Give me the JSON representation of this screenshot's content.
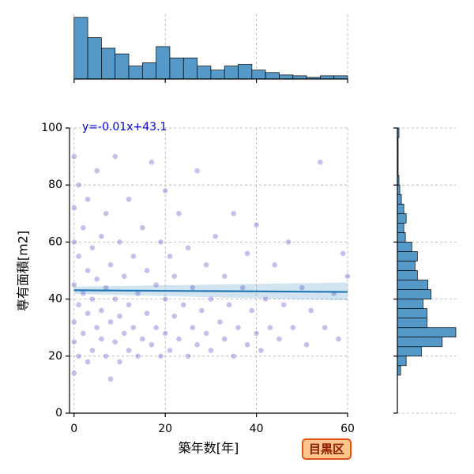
{
  "chart_data": [
    {
      "type": "scatter",
      "x_label": "築年数[年]",
      "y_label": "専有面積[m2]",
      "xlim": [
        -1,
        60
      ],
      "ylim": [
        0,
        100
      ],
      "xticks": [
        0,
        20,
        40,
        60
      ],
      "yticks": [
        0,
        20,
        40,
        60,
        80,
        100
      ],
      "grid": true,
      "color": "#3a2fc0",
      "x": [
        0,
        0,
        0,
        0,
        0,
        0,
        0,
        1,
        1,
        1,
        1,
        2,
        2,
        2,
        3,
        3,
        3,
        3,
        4,
        4,
        4,
        5,
        5,
        5,
        6,
        6,
        6,
        7,
        7,
        7,
        8,
        8,
        8,
        9,
        9,
        9,
        10,
        10,
        10,
        11,
        11,
        12,
        12,
        12,
        13,
        13,
        14,
        14,
        15,
        15,
        16,
        16,
        17,
        17,
        18,
        18,
        19,
        19,
        20,
        20,
        20,
        21,
        21,
        22,
        22,
        23,
        23,
        24,
        25,
        25,
        26,
        26,
        27,
        27,
        28,
        29,
        29,
        30,
        30,
        31,
        32,
        33,
        33,
        34,
        35,
        35,
        36,
        37,
        38,
        38,
        39,
        40,
        40,
        41,
        42,
        43,
        44,
        45,
        46,
        47,
        48,
        50,
        51,
        52,
        54,
        55,
        57,
        58,
        59,
        60
      ],
      "values": [
        14,
        25,
        32,
        45,
        60,
        72,
        90,
        20,
        38,
        55,
        80,
        28,
        42,
        65,
        18,
        35,
        50,
        75,
        22,
        40,
        58,
        30,
        47,
        85,
        26,
        36,
        62,
        20,
        44,
        70,
        12,
        32,
        52,
        25,
        40,
        90,
        18,
        34,
        60,
        28,
        48,
        22,
        38,
        75,
        30,
        55,
        20,
        42,
        26,
        65,
        35,
        50,
        24,
        88,
        30,
        45,
        20,
        60,
        28,
        40,
        78,
        22,
        55,
        34,
        48,
        26,
        70,
        38,
        20,
        58,
        30,
        44,
        24,
        85,
        36,
        28,
        52,
        40,
        22,
        62,
        32,
        26,
        48,
        38,
        20,
        70,
        30,
        44,
        24,
        56,
        36,
        28,
        66,
        22,
        40,
        30,
        52,
        26,
        38,
        60,
        30,
        44,
        24,
        36,
        88,
        30,
        42,
        26,
        56,
        48
      ],
      "regression": {
        "label": "y=-0.01x+43.1",
        "x": [
          0,
          60
        ],
        "values": [
          43.1,
          42.5
        ],
        "lower": [
          41.8,
          39.5
        ],
        "upper": [
          44.4,
          45.8
        ],
        "color": "#1f77b4"
      },
      "badge": "目黒区"
    },
    {
      "type": "histogram",
      "orientation": "vertical",
      "color": "#5499c7",
      "bins": [
        0,
        3,
        6,
        9,
        12,
        15,
        18,
        21,
        24,
        27,
        30,
        33,
        36,
        39,
        42,
        45,
        48,
        51,
        54,
        57,
        60
      ],
      "values": [
        76,
        51,
        38,
        31,
        16,
        20,
        40,
        26,
        26,
        16,
        11,
        16,
        18,
        11,
        8,
        5,
        4,
        2,
        4,
        4
      ],
      "xticks": [
        0,
        20,
        40,
        60
      ],
      "grid": true
    },
    {
      "type": "histogram",
      "orientation": "horizontal",
      "color": "#5499c7",
      "bins": [
        0,
        3.33,
        6.67,
        10,
        13.33,
        16.67,
        20,
        23.33,
        26.67,
        30,
        33.33,
        36.67,
        40,
        43.33,
        46.67,
        50,
        53.33,
        56.67,
        60,
        63.33,
        66.67,
        70,
        73.33,
        76.67,
        80,
        83.33,
        86.67,
        90,
        93.33,
        96.67,
        100
      ],
      "values": [
        0,
        0,
        0,
        0,
        4,
        11,
        30,
        56,
        73,
        37,
        37,
        32,
        42,
        38,
        25,
        22,
        25,
        18,
        10,
        8,
        11,
        8,
        5,
        3,
        2,
        1,
        1,
        1,
        1,
        2
      ],
      "yticks": [
        0,
        20,
        40,
        60,
        80,
        100
      ],
      "grid": true
    }
  ]
}
